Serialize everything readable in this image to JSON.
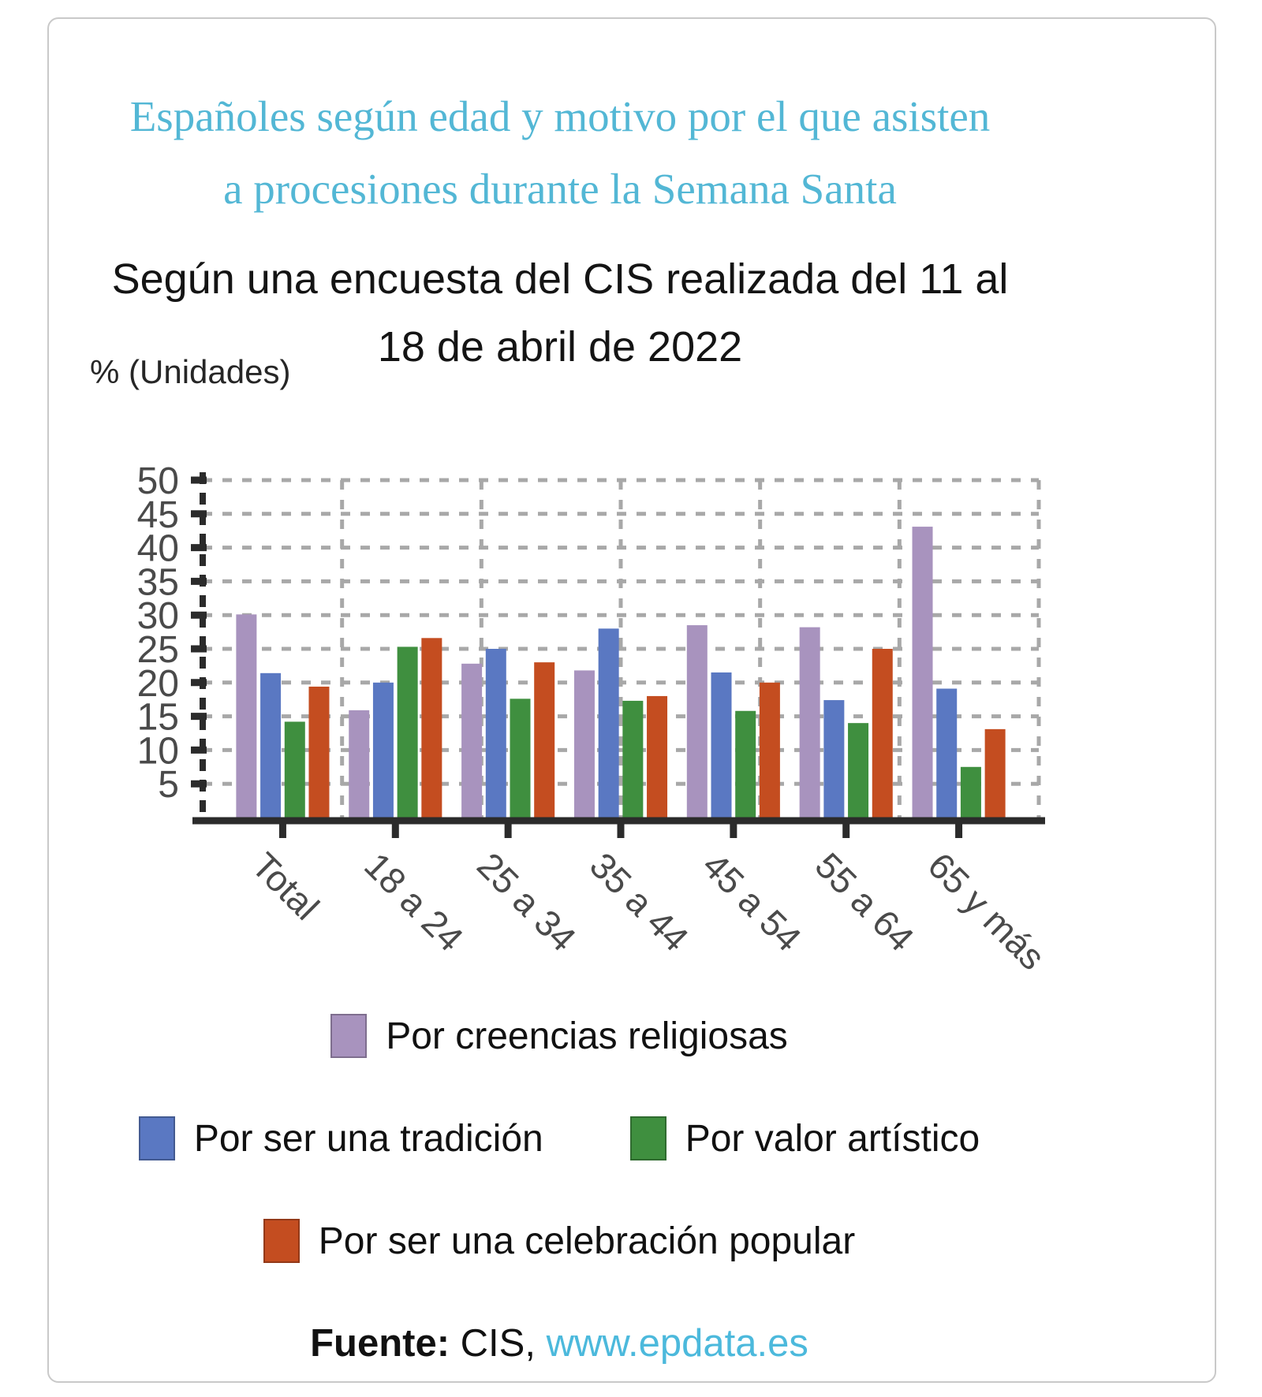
{
  "card": {
    "title": "Españoles según edad y motivo por el que asisten a procesiones durante la Semana Santa",
    "subtitle": "Según una encuesta del CIS realizada del 11 al 18 de abril de 2022",
    "y_axis_unit_label": "% (Unidades)"
  },
  "footer": {
    "source_label": "Fuente:",
    "source_value": " CIS, ",
    "link_text": "www.epdata.es"
  },
  "colors": {
    "title_accent": "#53b7d5",
    "link_accent": "#4cb9dc",
    "grid_gray": "#a8a8a8",
    "axis_dark": "#2b2b2b",
    "tick_label_gray": "#4a4a4a"
  },
  "chart_data": {
    "type": "bar",
    "title": "Españoles según edad y motivo por el que asisten a procesiones durante la Semana Santa",
    "subtitle": "Según una encuesta del CIS realizada del 11 al 18 de abril de 2022",
    "ylabel": "% (Unidades)",
    "xlabel": "",
    "ylim": [
      0,
      50
    ],
    "yticks": [
      5,
      10,
      15,
      20,
      25,
      30,
      35,
      40,
      45,
      50
    ],
    "grid": "dashed",
    "vertical_divisions": 6,
    "legend_position": "bottom",
    "categories": [
      "Total",
      "18 a 24",
      "25 a 34",
      "35 a 44",
      "45 a 54",
      "55 a 64",
      "65 y más"
    ],
    "series": [
      {
        "name": "Por creencias religiosas",
        "color": "#a893be",
        "values": [
          30.1,
          15.9,
          22.8,
          21.8,
          28.5,
          28.2,
          43.1
        ]
      },
      {
        "name": "Por ser una tradición",
        "color": "#5a78c2",
        "values": [
          21.4,
          20.0,
          25.0,
          28.0,
          21.5,
          17.4,
          19.1
        ]
      },
      {
        "name": "Por valor artístico",
        "color": "#3f8f3f",
        "values": [
          14.2,
          25.3,
          17.6,
          17.3,
          15.8,
          14.0,
          7.5
        ]
      },
      {
        "name": "Por ser una celebración popular",
        "color": "#c44d20",
        "values": [
          19.4,
          26.6,
          23.0,
          18.0,
          20.0,
          25.0,
          13.1
        ]
      }
    ]
  }
}
